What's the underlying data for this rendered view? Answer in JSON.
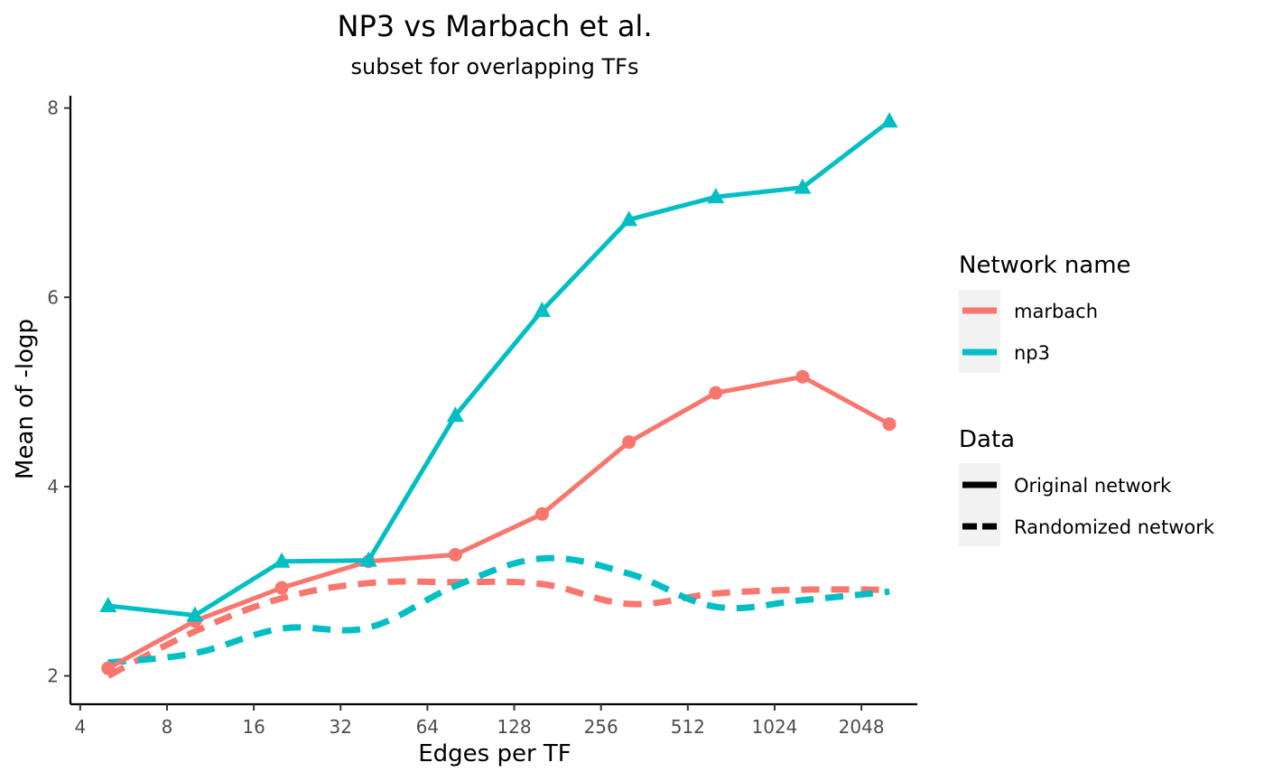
{
  "chart_data": {
    "type": "line",
    "title": "NP3 vs Marbach et al.",
    "subtitle": "subset for overlapping TFs",
    "xlabel": "Edges per TF",
    "ylabel": "Mean of -logp",
    "x_scale": "log2",
    "x_ticks": [
      4,
      8,
      16,
      32,
      64,
      128,
      256,
      512,
      1024,
      2048
    ],
    "x_tick_labels": [
      "4",
      "8",
      "16",
      "32",
      "64",
      "128",
      "256",
      "512",
      "1024",
      "2048"
    ],
    "y_ticks": [
      2,
      4,
      6,
      8
    ],
    "y_tick_labels": [
      "2",
      "4",
      "6",
      "8"
    ],
    "xlim": [
      3.7,
      3200
    ],
    "ylim": [
      1.7,
      8.13
    ],
    "grid": false,
    "x": [
      5,
      10,
      20,
      40,
      80,
      160,
      320,
      640,
      1280,
      2560
    ],
    "series": [
      {
        "network": "marbach",
        "data": "Original network",
        "color": "#F8766D",
        "dash": "solid",
        "marker": "circle",
        "values": [
          2.08,
          2.58,
          2.93,
          3.21,
          3.28,
          3.71,
          4.47,
          4.99,
          5.16,
          4.66
        ]
      },
      {
        "network": "np3",
        "data": "Original network",
        "color": "#00BFC4",
        "dash": "solid",
        "marker": "triangle",
        "values": [
          2.74,
          2.64,
          3.21,
          3.22,
          4.75,
          5.86,
          6.82,
          7.06,
          7.16,
          7.86
        ]
      },
      {
        "network": "marbach",
        "data": "Randomized network",
        "color": "#F8766D",
        "dash": "dashed",
        "marker": "none",
        "values": [
          2.0,
          2.47,
          2.82,
          2.98,
          2.99,
          2.97,
          2.76,
          2.87,
          2.91,
          2.91
        ]
      },
      {
        "network": "np3",
        "data": "Randomized network",
        "color": "#00BFC4",
        "dash": "dashed",
        "marker": "none",
        "values": [
          2.14,
          2.24,
          2.5,
          2.51,
          2.95,
          3.24,
          3.08,
          2.73,
          2.8,
          2.89
        ]
      }
    ],
    "legend": {
      "placement": "right",
      "groups": [
        {
          "title": "Network name",
          "items": [
            {
              "label": "marbach",
              "color": "#F8766D"
            },
            {
              "label": "np3",
              "color": "#00BFC4"
            }
          ]
        },
        {
          "title": "Data",
          "items": [
            {
              "label": "Original network",
              "dash": "solid"
            },
            {
              "label": "Randomized network",
              "dash": "dashed"
            }
          ]
        }
      ]
    }
  }
}
